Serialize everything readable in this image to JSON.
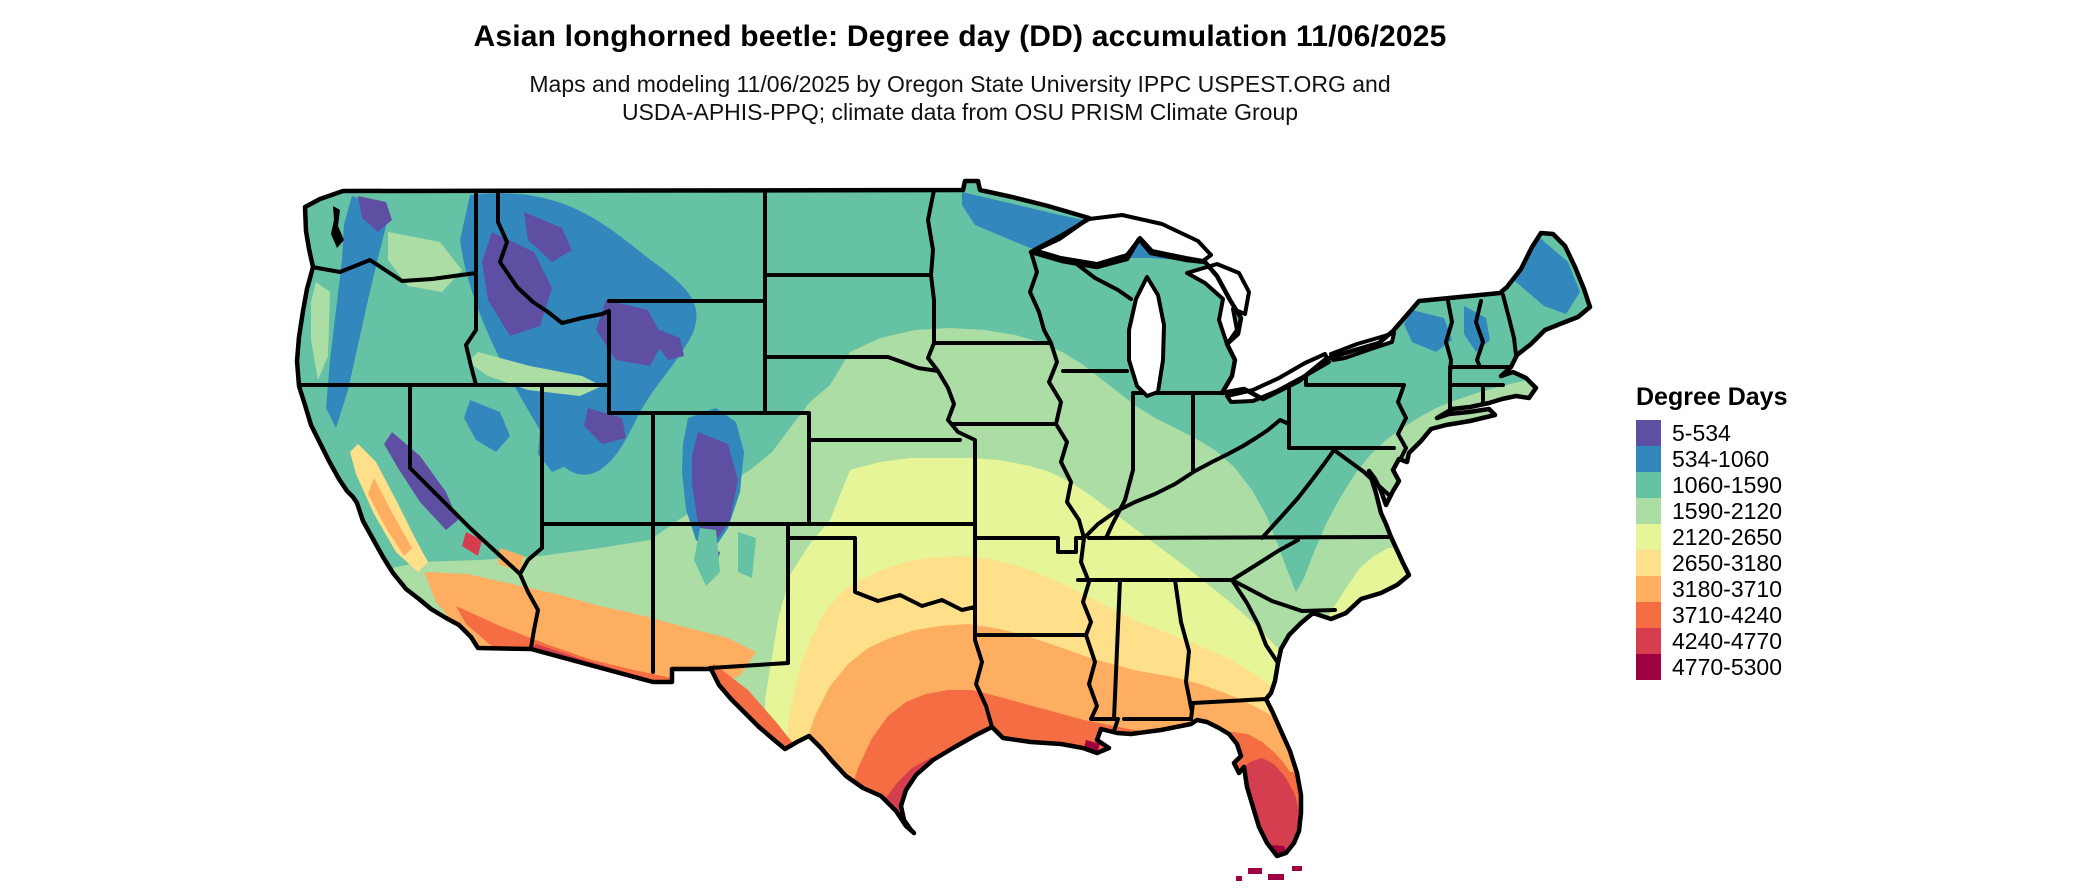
{
  "title": "Asian longhorned beetle: Degree day (DD) accumulation 11/06/2025",
  "subtitle_line1": "Maps and modeling 11/06/2025 by Oregon State University IPPC USPEST.ORG and",
  "subtitle_line2": "USDA-APHIS-PPQ; climate data from OSU PRISM Climate Group",
  "map": {
    "region": "Contiguous United States",
    "kind": "degree-day accumulation raster with state borders"
  },
  "legend": {
    "title": "Degree Days",
    "entries": [
      {
        "label": "5-534",
        "color": "#5e4fa2"
      },
      {
        "label": "534-1060",
        "color": "#3288bd"
      },
      {
        "label": "1060-1590",
        "color": "#66c2a5"
      },
      {
        "label": "1590-2120",
        "color": "#abdda4"
      },
      {
        "label": "2120-2650",
        "color": "#e6f598"
      },
      {
        "label": "2650-3180",
        "color": "#fee08b"
      },
      {
        "label": "3180-3710",
        "color": "#fdae61"
      },
      {
        "label": "3710-4240",
        "color": "#f46d43"
      },
      {
        "label": "4240-4770",
        "color": "#d53e4f"
      },
      {
        "label": "4770-5300",
        "color": "#9e0142"
      }
    ]
  }
}
